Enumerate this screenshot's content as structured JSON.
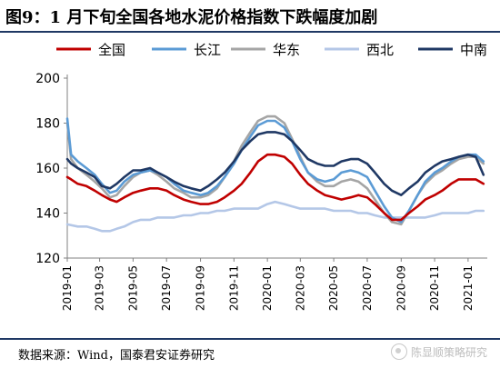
{
  "header": {
    "title": "图9：1 月下旬全国各地水泥价格指数下跌幅度加剧"
  },
  "footer": {
    "source": "数据来源：Wind，国泰君安证券研究",
    "watermark": "陈显顺策略研究"
  },
  "chart_data": {
    "type": "line",
    "title": "",
    "xlabel": "",
    "ylabel": "",
    "ylim": [
      120,
      200
    ],
    "yticks": [
      120,
      140,
      160,
      180,
      200
    ],
    "xlim": [
      "2019-01-01",
      "2021-02-05"
    ],
    "xticks": [
      "2019-01",
      "2019-03",
      "2019-05",
      "2019-07",
      "2019-09",
      "2019-11",
      "2020-01",
      "2020-03",
      "2020-05",
      "2020-07",
      "2020-09",
      "2020-11",
      "2021-01"
    ],
    "grid": false,
    "legend_position": "top",
    "series": [
      {
        "name": "全国",
        "color": "#c00000",
        "x": [
          "2019-01-01",
          "2019-01-08",
          "2019-01-20",
          "2019-02-05",
          "2019-02-20",
          "2019-03-05",
          "2019-03-20",
          "2019-04-01",
          "2019-04-15",
          "2019-05-01",
          "2019-05-15",
          "2019-06-01",
          "2019-06-15",
          "2019-07-01",
          "2019-07-15",
          "2019-08-01",
          "2019-08-15",
          "2019-09-01",
          "2019-09-15",
          "2019-10-01",
          "2019-10-15",
          "2019-11-01",
          "2019-11-15",
          "2019-12-01",
          "2019-12-15",
          "2020-01-01",
          "2020-01-15",
          "2020-02-01",
          "2020-02-15",
          "2020-03-01",
          "2020-03-15",
          "2020-04-01",
          "2020-04-15",
          "2020-05-01",
          "2020-05-15",
          "2020-06-01",
          "2020-06-15",
          "2020-07-01",
          "2020-07-15",
          "2020-08-01",
          "2020-08-15",
          "2020-09-01",
          "2020-09-15",
          "2020-10-01",
          "2020-10-15",
          "2020-11-01",
          "2020-11-15",
          "2020-12-01",
          "2020-12-15",
          "2021-01-01",
          "2021-01-15",
          "2021-01-29"
        ],
        "values": [
          156,
          155,
          153,
          152,
          150,
          148,
          146,
          145,
          147,
          149,
          150,
          151,
          151,
          150,
          148,
          146,
          145,
          144,
          144,
          145,
          147,
          150,
          153,
          158,
          163,
          166,
          166,
          165,
          162,
          157,
          153,
          150,
          148,
          147,
          146,
          147,
          148,
          147,
          144,
          140,
          137,
          137,
          140,
          143,
          146,
          148,
          150,
          153,
          155,
          155,
          155,
          153
        ]
      },
      {
        "name": "长江",
        "color": "#5b9bd5",
        "x": [
          "2019-01-01",
          "2019-01-08",
          "2019-01-20",
          "2019-02-05",
          "2019-02-20",
          "2019-03-05",
          "2019-03-20",
          "2019-04-01",
          "2019-04-15",
          "2019-05-01",
          "2019-05-15",
          "2019-06-01",
          "2019-06-15",
          "2019-07-01",
          "2019-07-15",
          "2019-08-01",
          "2019-08-15",
          "2019-09-01",
          "2019-09-15",
          "2019-10-01",
          "2019-10-15",
          "2019-11-01",
          "2019-11-15",
          "2019-12-01",
          "2019-12-15",
          "2020-01-01",
          "2020-01-15",
          "2020-02-01",
          "2020-02-15",
          "2020-03-01",
          "2020-03-15",
          "2020-04-01",
          "2020-04-15",
          "2020-05-01",
          "2020-05-15",
          "2020-06-01",
          "2020-06-15",
          "2020-07-01",
          "2020-07-15",
          "2020-08-01",
          "2020-08-15",
          "2020-09-01",
          "2020-09-15",
          "2020-10-01",
          "2020-10-15",
          "2020-11-01",
          "2020-11-15",
          "2020-12-01",
          "2020-12-15",
          "2021-01-01",
          "2021-01-15",
          "2021-01-29"
        ],
        "values": [
          182,
          166,
          163,
          160,
          157,
          153,
          149,
          150,
          154,
          157,
          158,
          159,
          158,
          156,
          153,
          150,
          149,
          148,
          149,
          152,
          156,
          162,
          168,
          174,
          179,
          181,
          181,
          178,
          172,
          164,
          158,
          155,
          154,
          155,
          158,
          159,
          158,
          156,
          150,
          143,
          138,
          136,
          141,
          148,
          154,
          158,
          160,
          163,
          165,
          166,
          166,
          163
        ]
      },
      {
        "name": "华东",
        "color": "#a5a5a5",
        "x": [
          "2019-01-01",
          "2019-01-08",
          "2019-01-20",
          "2019-02-05",
          "2019-02-20",
          "2019-03-05",
          "2019-03-20",
          "2019-04-01",
          "2019-04-15",
          "2019-05-01",
          "2019-05-15",
          "2019-06-01",
          "2019-06-15",
          "2019-07-01",
          "2019-07-15",
          "2019-08-01",
          "2019-08-15",
          "2019-09-01",
          "2019-09-15",
          "2019-10-01",
          "2019-10-15",
          "2019-11-01",
          "2019-11-15",
          "2019-12-01",
          "2019-12-15",
          "2020-01-01",
          "2020-01-15",
          "2020-02-01",
          "2020-02-15",
          "2020-03-01",
          "2020-03-15",
          "2020-04-01",
          "2020-04-15",
          "2020-05-01",
          "2020-05-15",
          "2020-06-01",
          "2020-06-15",
          "2020-07-01",
          "2020-07-15",
          "2020-08-01",
          "2020-08-15",
          "2020-09-01",
          "2020-09-15",
          "2020-10-01",
          "2020-10-15",
          "2020-11-01",
          "2020-11-15",
          "2020-12-01",
          "2020-12-15",
          "2021-01-01",
          "2021-01-15",
          "2021-01-29"
        ],
        "values": [
          180,
          164,
          160,
          157,
          154,
          151,
          147,
          148,
          152,
          156,
          158,
          159,
          157,
          154,
          151,
          149,
          147,
          147,
          148,
          151,
          156,
          163,
          170,
          176,
          181,
          183,
          183,
          180,
          173,
          165,
          158,
          154,
          152,
          152,
          154,
          155,
          154,
          151,
          146,
          140,
          136,
          135,
          141,
          148,
          153,
          157,
          159,
          162,
          164,
          165,
          165,
          162
        ]
      },
      {
        "name": "西北",
        "color": "#b4c7e7",
        "x": [
          "2019-01-01",
          "2019-01-20",
          "2019-02-05",
          "2019-02-20",
          "2019-03-05",
          "2019-03-20",
          "2019-04-01",
          "2019-04-15",
          "2019-05-01",
          "2019-05-15",
          "2019-06-01",
          "2019-06-15",
          "2019-07-01",
          "2019-07-15",
          "2019-08-01",
          "2019-08-15",
          "2019-09-01",
          "2019-09-15",
          "2019-10-01",
          "2019-10-15",
          "2019-11-01",
          "2019-11-15",
          "2019-12-01",
          "2019-12-15",
          "2020-01-01",
          "2020-01-15",
          "2020-02-01",
          "2020-02-15",
          "2020-03-01",
          "2020-03-15",
          "2020-04-01",
          "2020-04-15",
          "2020-05-01",
          "2020-05-15",
          "2020-06-01",
          "2020-06-15",
          "2020-07-01",
          "2020-07-15",
          "2020-08-01",
          "2020-08-15",
          "2020-09-01",
          "2020-09-15",
          "2020-10-01",
          "2020-10-15",
          "2020-11-01",
          "2020-11-15",
          "2020-12-01",
          "2020-12-15",
          "2021-01-01",
          "2021-01-15",
          "2021-01-29"
        ],
        "values": [
          135,
          134,
          134,
          133,
          132,
          132,
          133,
          134,
          136,
          137,
          137,
          138,
          138,
          138,
          139,
          139,
          140,
          140,
          141,
          141,
          142,
          142,
          142,
          142,
          144,
          145,
          144,
          143,
          142,
          142,
          142,
          142,
          141,
          141,
          141,
          140,
          140,
          139,
          138,
          138,
          138,
          138,
          138,
          138,
          139,
          140,
          140,
          140,
          140,
          141,
          141
        ]
      },
      {
        "name": "中南",
        "color": "#1f3864",
        "x": [
          "2019-01-01",
          "2019-01-08",
          "2019-01-20",
          "2019-02-05",
          "2019-02-20",
          "2019-03-05",
          "2019-03-20",
          "2019-04-01",
          "2019-04-15",
          "2019-05-01",
          "2019-05-15",
          "2019-06-01",
          "2019-06-15",
          "2019-07-01",
          "2019-07-15",
          "2019-08-01",
          "2019-08-15",
          "2019-09-01",
          "2019-09-15",
          "2019-10-01",
          "2019-10-15",
          "2019-11-01",
          "2019-11-15",
          "2019-12-01",
          "2019-12-15",
          "2020-01-01",
          "2020-01-15",
          "2020-02-01",
          "2020-02-15",
          "2020-03-01",
          "2020-03-15",
          "2020-04-01",
          "2020-04-15",
          "2020-05-01",
          "2020-05-15",
          "2020-06-01",
          "2020-06-15",
          "2020-07-01",
          "2020-07-15",
          "2020-08-01",
          "2020-08-15",
          "2020-09-01",
          "2020-09-15",
          "2020-10-01",
          "2020-10-15",
          "2020-11-01",
          "2020-11-15",
          "2020-12-01",
          "2020-12-15",
          "2021-01-01",
          "2021-01-15",
          "2021-01-29"
        ],
        "values": [
          164,
          162,
          160,
          158,
          156,
          152,
          151,
          153,
          156,
          159,
          159,
          160,
          158,
          156,
          154,
          152,
          151,
          150,
          152,
          155,
          158,
          163,
          168,
          172,
          175,
          176,
          176,
          175,
          172,
          168,
          164,
          162,
          161,
          161,
          163,
          164,
          164,
          162,
          158,
          153,
          150,
          148,
          151,
          154,
          158,
          161,
          163,
          164,
          165,
          166,
          165,
          157
        ]
      }
    ]
  }
}
